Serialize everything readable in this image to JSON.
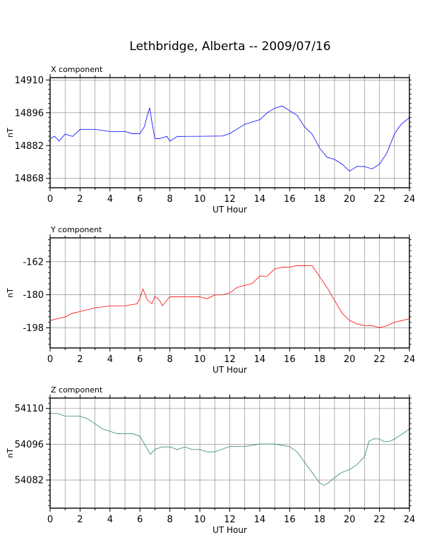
{
  "title": "Lethbridge, Alberta -- 2009/07/16",
  "colors": {
    "x_series": "#0000ff",
    "y_series": "#ff0000",
    "z_series": "#2e8b57",
    "grid": "#808080"
  },
  "chart_data": [
    {
      "type": "line",
      "title": "X component",
      "xlabel": "UT Hour",
      "ylabel": "nT",
      "xlim": [
        0,
        24
      ],
      "ylim": [
        14864,
        14911
      ],
      "xticks": [
        0,
        2,
        4,
        6,
        8,
        10,
        12,
        14,
        16,
        18,
        20,
        22,
        24
      ],
      "yticks": [
        14868,
        14882,
        14896,
        14910
      ],
      "grid": true,
      "series": [
        {
          "color": "#0000ff",
          "x": [
            0,
            0.3,
            0.6,
            1,
            1.5,
            2,
            3,
            4,
            5,
            5.5,
            6,
            6.3,
            6.5,
            6.65,
            6.8,
            7,
            7.3,
            7.8,
            8,
            8.5,
            9,
            10,
            10.5,
            11,
            11.5,
            12,
            12.5,
            13,
            13.5,
            14,
            14.5,
            15,
            15.5,
            16,
            16.5,
            17,
            17.5,
            18,
            18.5,
            19,
            19.5,
            20,
            20.5,
            21,
            21.5,
            22,
            22.5,
            23,
            23.3,
            23.6,
            24
          ],
          "y": [
            14885,
            14886,
            14884,
            14887,
            14886,
            14889,
            14889,
            14888,
            14888,
            14887,
            14887,
            14890,
            14895,
            14898,
            14892,
            14885,
            14885,
            14886,
            14884,
            14886,
            14886,
            14886,
            14886,
            14886,
            14886,
            14887,
            14889,
            14891,
            14892,
            14893,
            14896,
            14898,
            14899,
            14897,
            14895,
            14890,
            14887,
            14881,
            14877,
            14876,
            14874,
            14871,
            14873,
            14873,
            14872,
            14874,
            14879,
            14887,
            14890,
            14892,
            14894
          ]
        }
      ]
    },
    {
      "type": "line",
      "title": "Y component",
      "xlabel": "UT Hour",
      "ylabel": "nT",
      "xlim": [
        0,
        24
      ],
      "ylim": [
        -209,
        -149
      ],
      "xticks": [
        0,
        2,
        4,
        6,
        8,
        10,
        12,
        14,
        16,
        18,
        20,
        22,
        24
      ],
      "yticks": [
        -198,
        -180,
        -162
      ],
      "grid": true,
      "series": [
        {
          "color": "#ff0000",
          "x": [
            0,
            0.5,
            1,
            1.5,
            2,
            3,
            4,
            5,
            5.8,
            6,
            6.2,
            6.5,
            6.8,
            7,
            7.3,
            7.5,
            8,
            9,
            10,
            10.5,
            11,
            11.5,
            12,
            12.5,
            13,
            13.5,
            14,
            14.5,
            15,
            15.5,
            16,
            16.5,
            17,
            17.5,
            18,
            18.5,
            19,
            19.5,
            20,
            20.5,
            21,
            21.5,
            22,
            22.5,
            23,
            23.5,
            24
          ],
          "y": [
            -194,
            -193,
            -192,
            -190,
            -189,
            -187,
            -186,
            -186,
            -185,
            -182,
            -177,
            -183,
            -185,
            -181,
            -183,
            -186,
            -181,
            -181,
            -181,
            -182,
            -180,
            -180,
            -179,
            -176,
            -175,
            -174,
            -170,
            -170,
            -166,
            -165,
            -165,
            -164,
            -164,
            -164,
            -170,
            -176,
            -183,
            -190,
            -194,
            -196,
            -197,
            -197,
            -198,
            -197,
            -195,
            -194,
            -193
          ]
        }
      ]
    },
    {
      "type": "line",
      "title": "Z component",
      "xlabel": "UT Hour",
      "ylabel": "nT",
      "xlim": [
        0,
        24
      ],
      "ylim": [
        54071,
        54114
      ],
      "xticks": [
        0,
        2,
        4,
        6,
        8,
        10,
        12,
        14,
        16,
        18,
        20,
        22,
        24
      ],
      "yticks": [
        54082,
        54096,
        54110
      ],
      "grid": true,
      "series": [
        {
          "color": "#2e8b57",
          "x": [
            0,
            0.5,
            1,
            1.5,
            2,
            2.5,
            3,
            3.5,
            4,
            4.5,
            5,
            5.5,
            6,
            6.3,
            6.7,
            7,
            7.5,
            8,
            8.5,
            9,
            9.5,
            10,
            10.5,
            11,
            11.5,
            12,
            13,
            14,
            15,
            16,
            16.5,
            17,
            17.5,
            18,
            18.3,
            18.6,
            19,
            19.5,
            20,
            20.5,
            21,
            21.3,
            21.6,
            22,
            22.3,
            22.6,
            23,
            23.5,
            24
          ],
          "y": [
            54108,
            54108,
            54107,
            54107,
            54107,
            54106,
            54104,
            54102,
            54101,
            54100,
            54100,
            54100,
            54099,
            54096,
            54092,
            54094,
            54095,
            54095,
            54094,
            54095,
            54094,
            54094,
            54093,
            54093,
            54094,
            54095,
            54095,
            54096,
            54096,
            54095,
            54093,
            54089,
            54085,
            54081,
            54080,
            54081,
            54083,
            54085,
            54086,
            54088,
            54091,
            54097,
            54098,
            54098,
            54097,
            54097,
            54098,
            54100,
            54102
          ]
        }
      ]
    }
  ]
}
